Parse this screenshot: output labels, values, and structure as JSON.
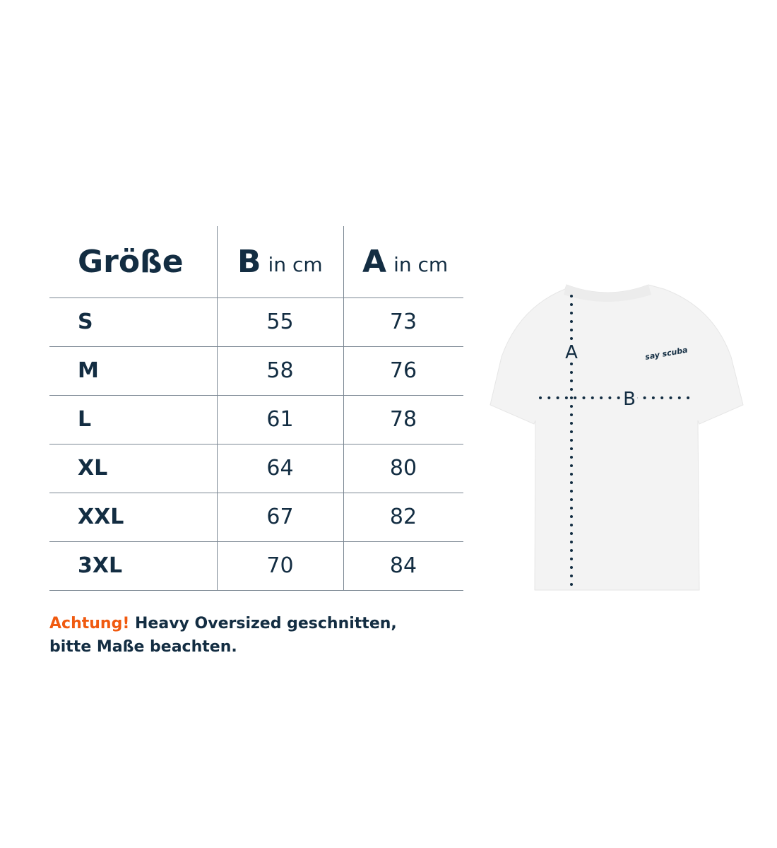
{
  "table": {
    "headers": {
      "size": "Größe",
      "b_letter": "B",
      "b_unit": "in cm",
      "a_letter": "A",
      "a_unit": "in cm"
    },
    "rows": [
      {
        "size": "S",
        "b": "55",
        "a": "73"
      },
      {
        "size": "M",
        "b": "58",
        "a": "76"
      },
      {
        "size": "L",
        "b": "61",
        "a": "78"
      },
      {
        "size": "XL",
        "b": "64",
        "a": "80"
      },
      {
        "size": "XXL",
        "b": "67",
        "a": "82"
      },
      {
        "size": "3XL",
        "b": "70",
        "a": "84"
      }
    ]
  },
  "note": {
    "warning": "Achtung!",
    "line1": " Heavy Oversized geschnitten,",
    "line2": "bitte Maße beachten."
  },
  "diagram": {
    "label_a": "A",
    "label_b": "B",
    "logo_text": "say scuba"
  },
  "colors": {
    "text": "#132d42",
    "accent": "#f05a10",
    "shirt": "#f3f3f3"
  }
}
